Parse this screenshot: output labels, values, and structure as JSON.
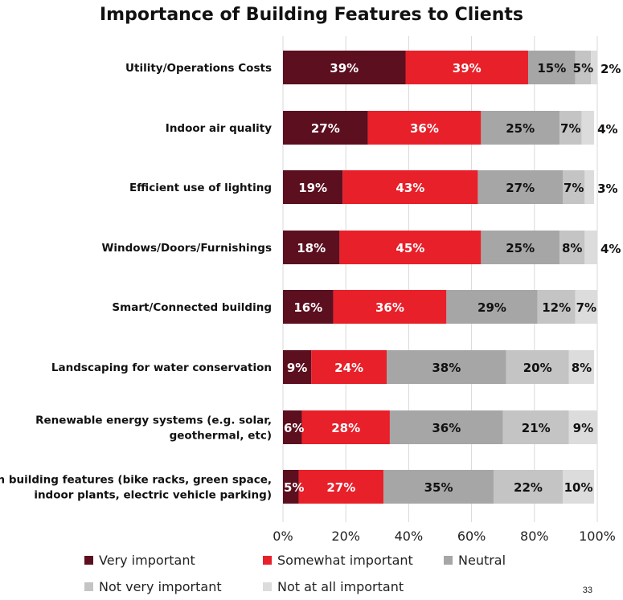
{
  "title": "Importance of Building Features to Clients",
  "page_number": "33",
  "chart_data": {
    "type": "bar",
    "orientation": "horizontal",
    "stacked": true,
    "title": "Importance of Building Features to Clients",
    "categories": [
      [
        "Utility/Operations Costs"
      ],
      [
        "Indoor air quality"
      ],
      [
        "Efficient use of lighting"
      ],
      [
        "Windows/Doors/Furnishings"
      ],
      [
        "Smart/Connected building"
      ],
      [
        "Landscaping for water conservation"
      ],
      [
        "Renewable energy systems (e.g. solar,",
        "geothermal, etc)"
      ],
      [
        "Green building features (bike racks, green space,",
        "indoor plants, electric vehicle parking)"
      ]
    ],
    "series": [
      {
        "name": "Very important",
        "color": "#5c0f1f",
        "values": [
          39,
          27,
          19,
          18,
          16,
          9,
          6,
          5
        ],
        "labels": [
          "39%",
          "27%",
          "19%",
          "18%",
          "16%",
          "9%",
          "6%",
          "5%"
        ]
      },
      {
        "name": "Somewhat important",
        "color": "#e8202a",
        "values": [
          39,
          36,
          43,
          45,
          36,
          24,
          28,
          27
        ],
        "labels": [
          "39%",
          "36%",
          "43%",
          "45%",
          "36%",
          "24%",
          "28%",
          "27%"
        ]
      },
      {
        "name": "Neutral",
        "color": "#a6a6a6",
        "values": [
          15,
          25,
          27,
          25,
          29,
          38,
          36,
          35
        ],
        "labels": [
          "15%",
          "25%",
          "27%",
          "25%",
          "29%",
          "38%",
          "36%",
          "35%"
        ]
      },
      {
        "name": "Not very important",
        "color": "#c4c4c4",
        "values": [
          5,
          7,
          7,
          8,
          12,
          20,
          21,
          22
        ],
        "labels": [
          "5%",
          "7%",
          "7%",
          "8%",
          "12%",
          "20%",
          "21%",
          "22%"
        ]
      },
      {
        "name": "Not at all important",
        "color": "#dcdcdc",
        "values": [
          2,
          4,
          3,
          4,
          7,
          8,
          9,
          10
        ],
        "labels": [
          "2%",
          "4%",
          "3%",
          "4%",
          "7%",
          "8%",
          "9%",
          "10%"
        ]
      }
    ],
    "x_ticks": [
      "0%",
      "20%",
      "40%",
      "60%",
      "80%",
      "100%"
    ],
    "xlim": [
      0,
      100
    ],
    "grid": true,
    "legend": "bottom"
  }
}
